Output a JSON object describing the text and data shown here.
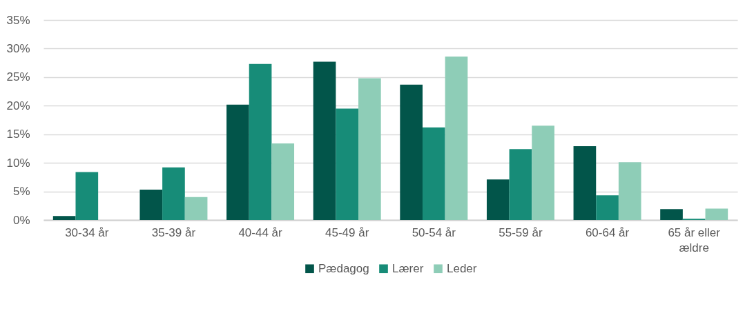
{
  "chart_data": {
    "type": "bar",
    "categories": [
      "30-34 år",
      "35-39 år",
      "40-44 år",
      "45-49 år",
      "50-54 år",
      "55-59 år",
      "60-64 år",
      "65 år eller ældre"
    ],
    "series": [
      {
        "name": "Pædagog",
        "color": "#02554a",
        "values": [
          0.7,
          5.3,
          20.2,
          27.7,
          23.7,
          7.1,
          12.9,
          1.9
        ]
      },
      {
        "name": "Lærer",
        "color": "#178c78",
        "values": [
          8.4,
          9.2,
          27.3,
          19.5,
          16.2,
          12.4,
          4.3,
          0.2
        ]
      },
      {
        "name": "Leder",
        "color": "#8ecdb7",
        "values": [
          0,
          4.0,
          13.4,
          24.8,
          28.6,
          16.5,
          10.1,
          2.0
        ]
      }
    ],
    "ylim": [
      0,
      35
    ],
    "yticks": [
      {
        "value": 0,
        "label": "0%"
      },
      {
        "value": 5,
        "label": "5%"
      },
      {
        "value": 10,
        "label": "10%"
      },
      {
        "value": 15,
        "label": "15%"
      },
      {
        "value": 20,
        "label": "20%"
      },
      {
        "value": 25,
        "label": "25%"
      },
      {
        "value": 30,
        "label": "30%"
      },
      {
        "value": 35,
        "label": "35%"
      }
    ],
    "grid": "y",
    "legend": "bottom"
  }
}
